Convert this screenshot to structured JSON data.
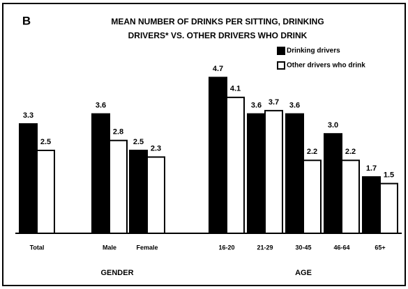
{
  "chart_data": {
    "type": "bar",
    "panel_label": "B",
    "title": [
      "MEAN NUMBER OF DRINKS PER SITTING, DRINKING",
      "DRIVERS* VS. OTHER DRIVERS WHO DRINK"
    ],
    "categories": [
      "Total",
      "Male",
      "Female",
      "16-20",
      "21-29",
      "30-45",
      "46-64",
      "65+"
    ],
    "groups": [
      {
        "label": "GENDER"
      },
      {
        "label": "AGE"
      }
    ],
    "series": [
      {
        "name": "Drinking drivers",
        "color": "#000000",
        "values": [
          3.3,
          3.6,
          2.5,
          4.7,
          3.6,
          3.6,
          3.0,
          1.7
        ],
        "value_labels": [
          "3.3",
          "3.6",
          "2.5",
          "4.7",
          "3.6",
          "3.6",
          "3.0",
          "1.7"
        ]
      },
      {
        "name": "Other drivers who drink",
        "color": "#ffffff",
        "values": [
          2.5,
          2.8,
          2.3,
          4.1,
          3.7,
          2.2,
          2.2,
          1.5
        ]
      }
    ]
  }
}
